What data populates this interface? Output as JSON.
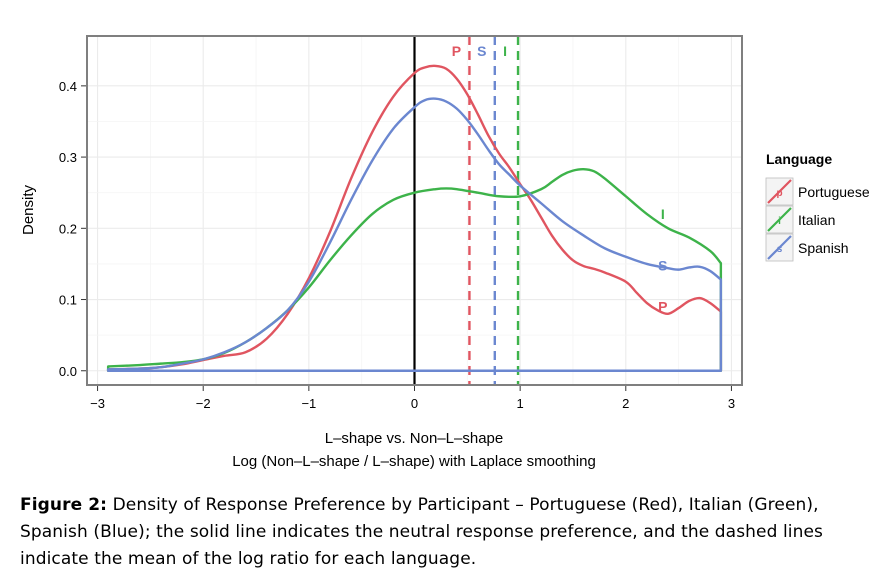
{
  "chart_data": {
    "type": "line",
    "title": "",
    "xlabel": "L–shape vs. Non–L–shape",
    "xlabel2": "Log (Non–L–shape / L–shape) with Laplace smoothing",
    "ylabel": "Density",
    "xlim": [
      -3.1,
      3.1
    ],
    "ylim": [
      -0.02,
      0.47
    ],
    "xticks": [
      -3,
      -2,
      -1,
      0,
      1,
      2,
      3
    ],
    "xtick_labels": [
      "−3",
      "−2",
      "−1",
      "0",
      "1",
      "2",
      "3"
    ],
    "yticks": [
      0.0,
      0.1,
      0.2,
      0.3,
      0.4
    ],
    "ytick_labels": [
      "0.0",
      "0.1",
      "0.2",
      "0.3",
      "0.4"
    ],
    "grid": true,
    "legend": {
      "title": "Language",
      "position": "right"
    },
    "neutral_line_x": 0,
    "series": [
      {
        "name": "Portuguese",
        "color": "#e05560",
        "marker_letter": "P",
        "mean_log_ratio": 0.52,
        "curve_label_position": [
          2.35,
          0.09
        ],
        "x": [
          -2.9,
          -2.6,
          -2.4,
          -2.2,
          -2.0,
          -1.8,
          -1.6,
          -1.4,
          -1.2,
          -1.0,
          -0.8,
          -0.6,
          -0.4,
          -0.2,
          0.0,
          0.1,
          0.2,
          0.3,
          0.4,
          0.5,
          0.6,
          0.7,
          0.8,
          0.9,
          1.0,
          1.1,
          1.2,
          1.3,
          1.4,
          1.5,
          1.6,
          1.7,
          1.8,
          2.0,
          2.1,
          2.2,
          2.3,
          2.4,
          2.5,
          2.6,
          2.7,
          2.8,
          2.9
        ],
        "y": [
          0.002,
          0.003,
          0.005,
          0.009,
          0.015,
          0.021,
          0.026,
          0.045,
          0.08,
          0.13,
          0.195,
          0.27,
          0.335,
          0.385,
          0.418,
          0.426,
          0.428,
          0.424,
          0.41,
          0.388,
          0.36,
          0.33,
          0.305,
          0.285,
          0.262,
          0.24,
          0.215,
          0.19,
          0.17,
          0.155,
          0.147,
          0.143,
          0.138,
          0.125,
          0.11,
          0.095,
          0.085,
          0.08,
          0.088,
          0.098,
          0.102,
          0.095,
          0.083
        ]
      },
      {
        "name": "Italian",
        "color": "#3db34a",
        "marker_letter": "I",
        "mean_log_ratio": 0.98,
        "curve_label_position": [
          2.35,
          0.22
        ],
        "x": [
          -2.9,
          -2.6,
          -2.4,
          -2.2,
          -2.0,
          -1.8,
          -1.6,
          -1.4,
          -1.2,
          -1.0,
          -0.8,
          -0.6,
          -0.4,
          -0.2,
          0.0,
          0.2,
          0.3,
          0.4,
          0.6,
          0.8,
          1.0,
          1.2,
          1.3,
          1.4,
          1.5,
          1.6,
          1.7,
          1.8,
          2.0,
          2.2,
          2.4,
          2.6,
          2.8,
          2.9
        ],
        "y": [
          0.006,
          0.008,
          0.01,
          0.012,
          0.016,
          0.025,
          0.04,
          0.06,
          0.085,
          0.117,
          0.155,
          0.19,
          0.22,
          0.24,
          0.25,
          0.255,
          0.256,
          0.255,
          0.25,
          0.245,
          0.245,
          0.255,
          0.265,
          0.275,
          0.281,
          0.283,
          0.28,
          0.27,
          0.245,
          0.22,
          0.2,
          0.187,
          0.168,
          0.151
        ]
      },
      {
        "name": "Spanish",
        "color": "#6b87d0",
        "marker_letter": "S",
        "mean_log_ratio": 0.76,
        "curve_label_position": [
          2.35,
          0.148
        ],
        "x": [
          -2.9,
          -2.6,
          -2.4,
          -2.2,
          -2.0,
          -1.8,
          -1.6,
          -1.4,
          -1.2,
          -1.0,
          -0.8,
          -0.6,
          -0.4,
          -0.2,
          0.0,
          0.1,
          0.2,
          0.3,
          0.4,
          0.5,
          0.6,
          0.7,
          0.8,
          0.9,
          1.0,
          1.2,
          1.4,
          1.6,
          1.8,
          2.0,
          2.2,
          2.4,
          2.5,
          2.6,
          2.7,
          2.8,
          2.9
        ],
        "y": [
          0.002,
          0.003,
          0.005,
          0.01,
          0.016,
          0.026,
          0.04,
          0.06,
          0.085,
          0.125,
          0.18,
          0.24,
          0.295,
          0.34,
          0.37,
          0.38,
          0.382,
          0.378,
          0.368,
          0.352,
          0.332,
          0.31,
          0.29,
          0.275,
          0.26,
          0.235,
          0.21,
          0.19,
          0.172,
          0.16,
          0.15,
          0.144,
          0.142,
          0.145,
          0.146,
          0.14,
          0.128
        ]
      }
    ]
  },
  "caption": {
    "label": "Figure 2:",
    "text": " Density of Response Preference by Participant – Portuguese (Red), Italian (Green), Spanish (Blue); the solid line indicates the neutral response preference, and the dashed lines indicate the mean of the log ratio for each language."
  }
}
